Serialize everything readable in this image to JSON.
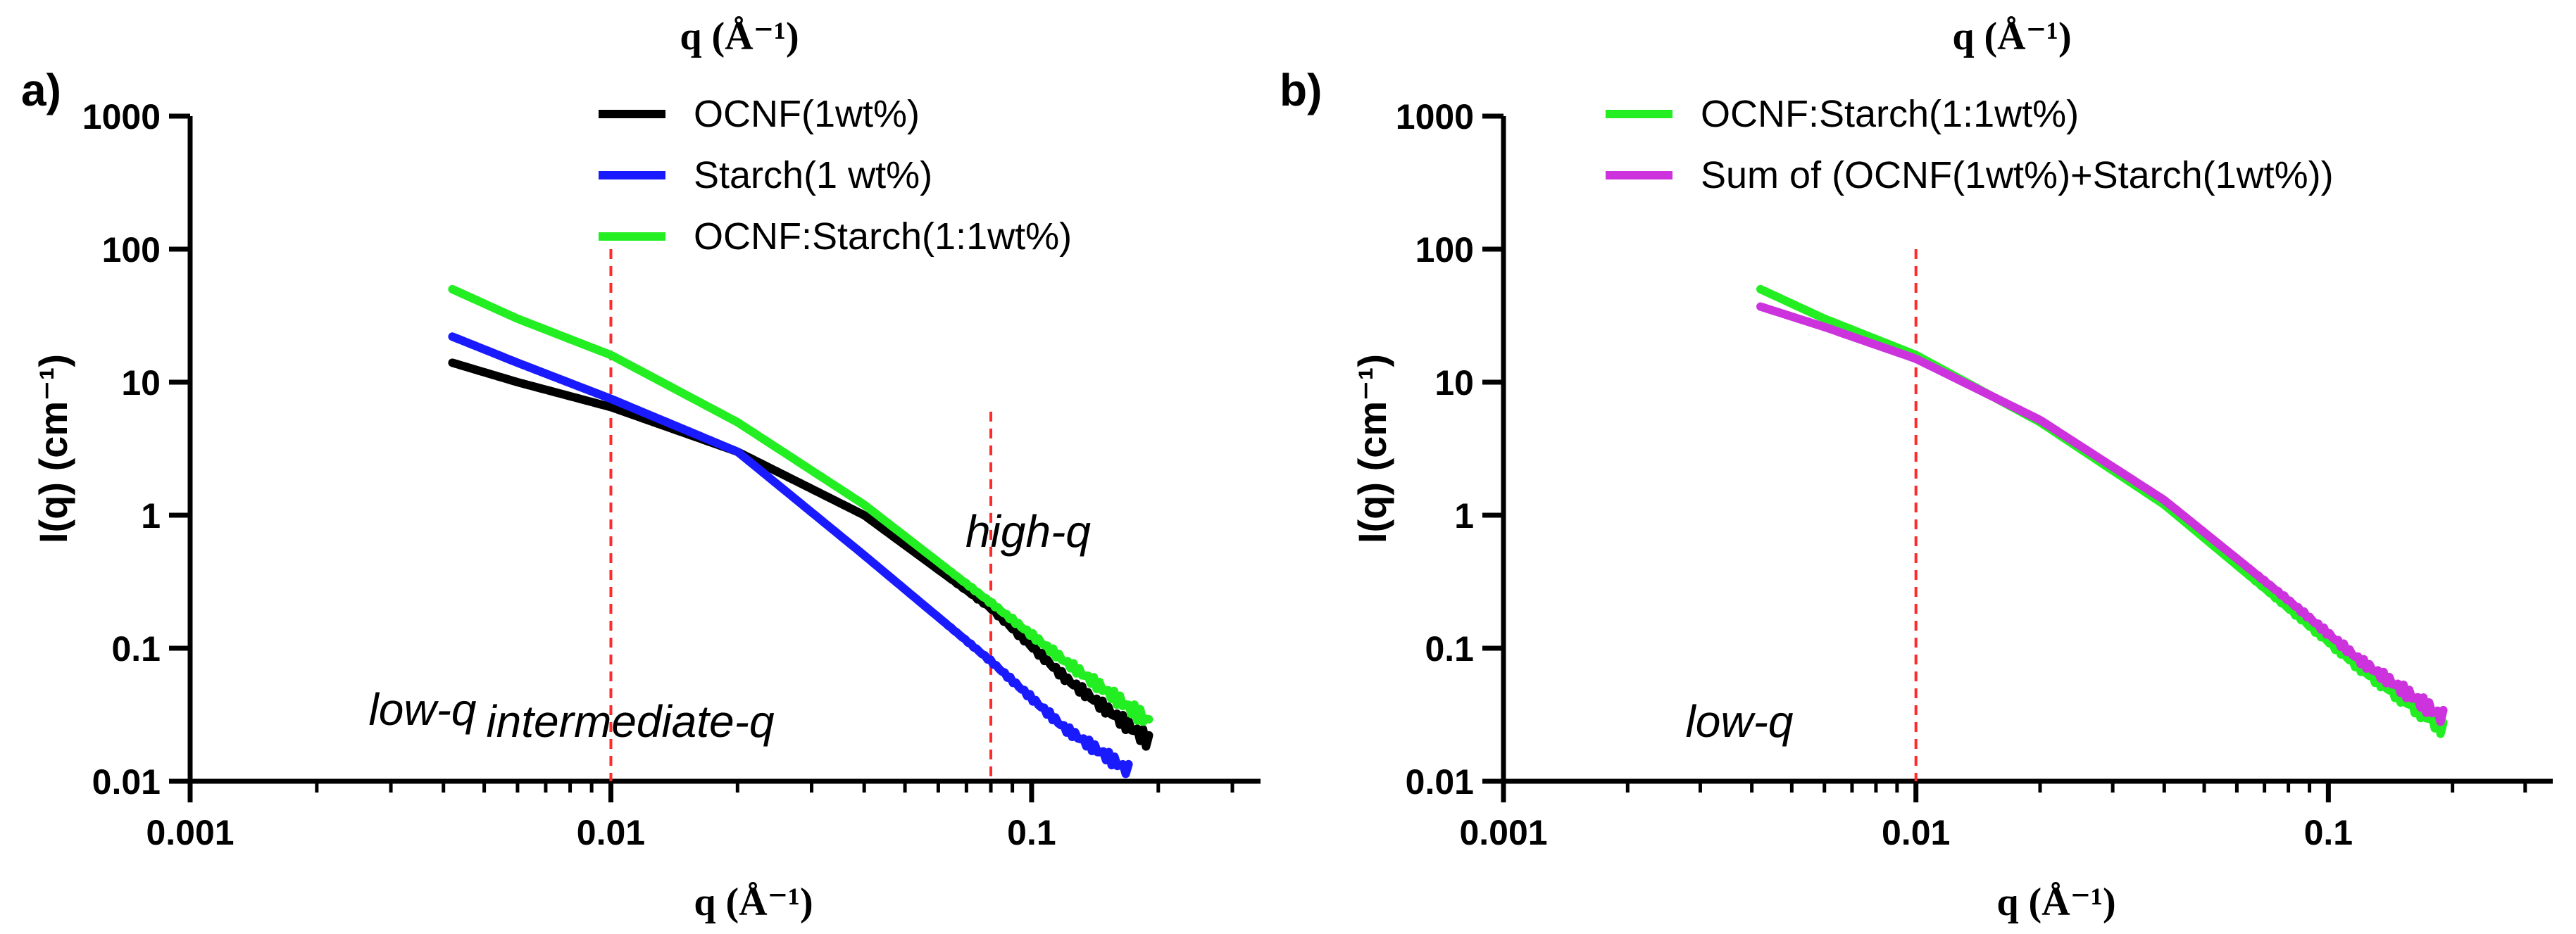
{
  "panels": [
    {
      "panel_label": "a)",
      "top_axis_label": "q (Å⁻¹)",
      "annotations": [
        "low-q",
        "intermediate-q",
        "high-q"
      ]
    },
    {
      "panel_label": "b)",
      "top_axis_label": "q (Å⁻¹)",
      "annotations": [
        "low-q"
      ]
    }
  ],
  "chart_data": [
    {
      "type": "line",
      "title": "",
      "xlabel": "q (Å⁻¹)",
      "ylabel": "I(q) (cm⁻¹)",
      "x_scale": "log",
      "y_scale": "log",
      "xlim": [
        0.001,
        0.35
      ],
      "ylim": [
        0.01,
        1000
      ],
      "x_ticks": [
        0.001,
        0.01,
        0.1
      ],
      "x_tick_labels": [
        "0.001",
        "0.01",
        "0.1"
      ],
      "y_ticks": [
        0.01,
        0.1,
        1,
        10,
        100,
        1000
      ],
      "y_tick_labels": [
        "0.01",
        "0.1",
        "1",
        "10",
        "100",
        "1000"
      ],
      "legend_position": "top-right",
      "vertical_lines": [
        0.01,
        0.08
      ],
      "series": [
        {
          "name": "OCNF(1wt%)",
          "color": "#000000",
          "x": [
            0.0042,
            0.006,
            0.01,
            0.02,
            0.04,
            0.08,
            0.12,
            0.19
          ],
          "y": [
            14,
            10,
            6.5,
            3.0,
            1.0,
            0.2,
            0.06,
            0.02
          ]
        },
        {
          "name": "Starch(1 wt%)",
          "color": "#1a1aff",
          "x": [
            0.0042,
            0.006,
            0.01,
            0.02,
            0.04,
            0.08,
            0.12,
            0.17
          ],
          "y": [
            22,
            14,
            7.5,
            3.0,
            0.5,
            0.08,
            0.025,
            0.012
          ]
        },
        {
          "name": "OCNF:Starch(1:1wt%)",
          "color": "#22ee22",
          "x": [
            0.0042,
            0.006,
            0.01,
            0.02,
            0.04,
            0.08,
            0.12,
            0.19
          ],
          "y": [
            50,
            30,
            16,
            5.0,
            1.2,
            0.22,
            0.08,
            0.028
          ]
        }
      ]
    },
    {
      "type": "line",
      "title": "",
      "xlabel": "q (Å⁻¹)",
      "ylabel": "I(q) (cm⁻¹)",
      "x_scale": "log",
      "y_scale": "log",
      "xlim": [
        0.001,
        0.35
      ],
      "ylim": [
        0.01,
        1000
      ],
      "x_ticks": [
        0.001,
        0.01,
        0.1
      ],
      "x_tick_labels": [
        "0.001",
        "0.01",
        "0.1"
      ],
      "y_ticks": [
        0.01,
        0.1,
        1,
        10,
        100,
        1000
      ],
      "y_tick_labels": [
        "0.01",
        "0.1",
        "1",
        "10",
        "100",
        "1000"
      ],
      "legend_position": "top-right",
      "vertical_lines": [
        0.01
      ],
      "series": [
        {
          "name": "OCNF:Starch(1:1wt%)",
          "color": "#22ee22",
          "x": [
            0.0042,
            0.006,
            0.01,
            0.02,
            0.04,
            0.08,
            0.12,
            0.19
          ],
          "y": [
            50,
            30,
            16,
            5.0,
            1.2,
            0.2,
            0.07,
            0.025
          ]
        },
        {
          "name": "Sum of (OCNF(1wt%)+Starch(1wt%))",
          "color": "#cc33dd",
          "x": [
            0.0042,
            0.006,
            0.01,
            0.02,
            0.04,
            0.08,
            0.12,
            0.19
          ],
          "y": [
            37,
            26,
            15,
            5.2,
            1.3,
            0.23,
            0.08,
            0.03
          ]
        }
      ]
    }
  ]
}
